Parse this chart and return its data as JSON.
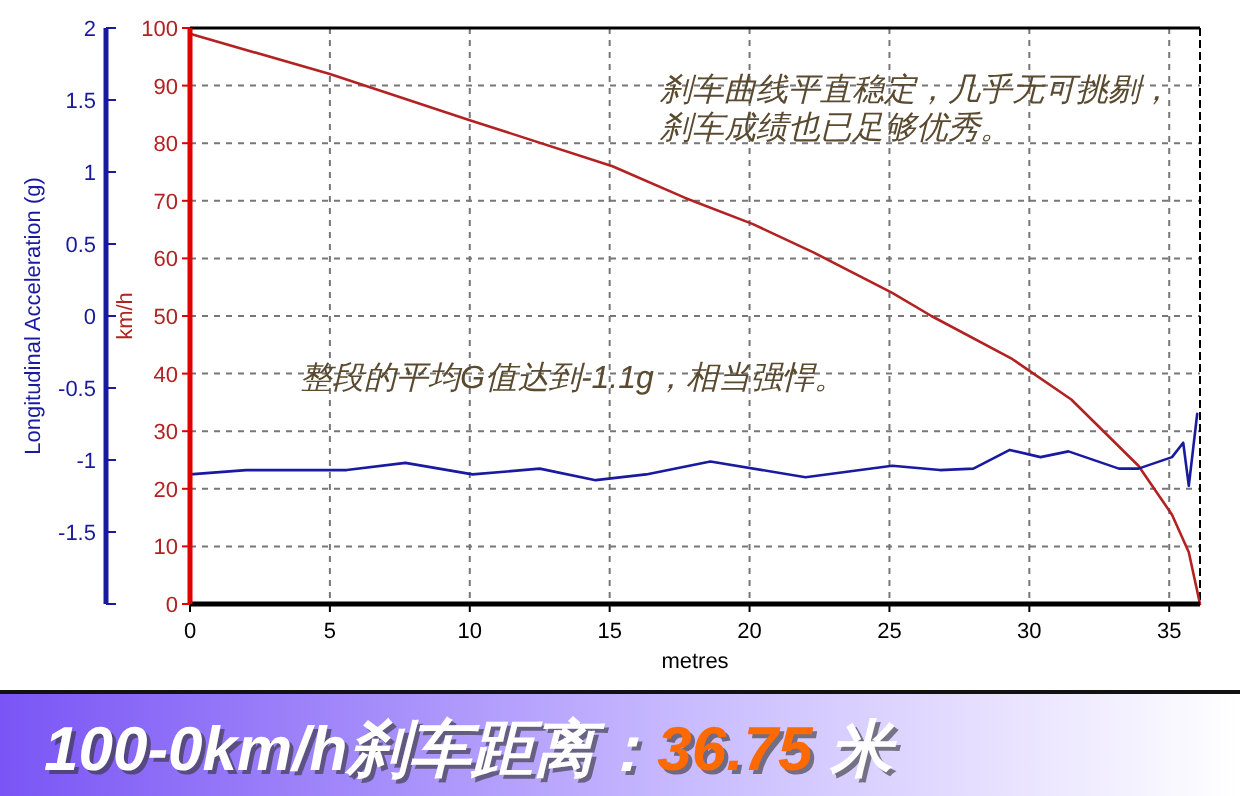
{
  "chart_data": {
    "type": "line",
    "title": "100-0km/h刹车距离：36.75 米",
    "xlabel": "metres",
    "ylabel": "Longitudinal Acceleration (g)",
    "y2label": "km/h",
    "annotations": [
      "刹车曲线平直稳定，几乎无可挑剔，",
      "刹车成绩也已足够优秀。",
      "整段的平均G值达到-1.1g，相当强悍。"
    ],
    "xlim": [
      0,
      36.1
    ],
    "xticks": [
      0,
      5,
      10,
      15,
      20,
      25,
      30,
      35
    ],
    "ylim": [
      -2,
      2
    ],
    "yticks": [
      {
        "value": -2,
        "label": null
      },
      -1.5,
      -1,
      -0.5,
      0,
      0.5,
      1,
      1.5,
      2
    ],
    "y2lim": [
      0,
      100
    ],
    "y2ticks": [
      0,
      10,
      20,
      30,
      40,
      50,
      60,
      70,
      80,
      90,
      100
    ],
    "grid": true,
    "marker": "none",
    "line_style": "solid",
    "series": [
      {
        "color": "#b22222",
        "axis": "y2",
        "x": [
          0,
          5,
          10,
          15.1,
          17.7,
          20.1,
          22.3,
          25.1,
          26.5,
          29.4,
          31.5,
          33.9,
          35.1,
          35.7,
          36.1
        ],
        "values": [
          99,
          92,
          84,
          76,
          70.5,
          66,
          61,
          54,
          50,
          42.5,
          35.5,
          24,
          15.5,
          9,
          0
        ]
      },
      {
        "color": "#1a1aa0",
        "x": [
          0,
          2,
          5.6,
          7.7,
          10.1,
          12.5,
          14.5,
          16.3,
          18.6,
          22,
          25.1,
          26.8,
          28,
          29.3,
          30.4,
          31.4,
          33.2,
          33.9,
          35.1,
          35.5,
          35.7,
          36
        ],
        "values": [
          -1.1,
          -1.07,
          -1.07,
          -1.02,
          -1.1,
          -1.06,
          -1.14,
          -1.1,
          -1.01,
          -1.12,
          -1.04,
          -1.07,
          -1.06,
          -0.93,
          -0.98,
          -0.94,
          -1.06,
          -1.06,
          -0.98,
          -0.88,
          -1.18,
          -0.68
        ]
      }
    ]
  }
}
